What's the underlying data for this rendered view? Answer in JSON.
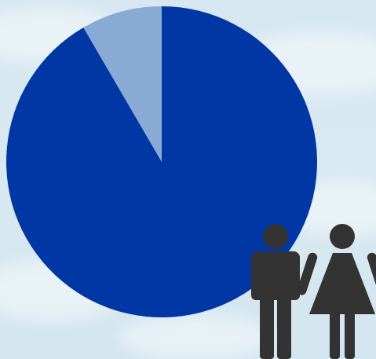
{
  "chart_data": {
    "type": "pie",
    "title": "",
    "slices": [
      {
        "value": 91.6,
        "color": "#0037a4"
      },
      {
        "value": 8.4,
        "color": "#8aaad6"
      }
    ],
    "start_angle_deg": 0,
    "direction": "clockwise",
    "legend": "none"
  },
  "decoration": {
    "icon": "man-woman-icon",
    "icon_color": "#333333",
    "background": "sky-with-clouds"
  }
}
